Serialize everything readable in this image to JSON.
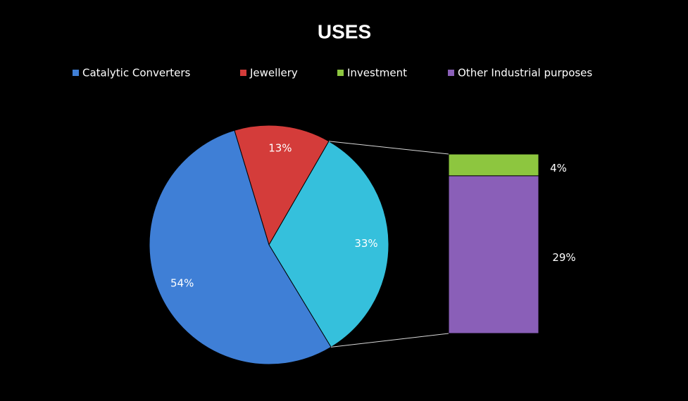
{
  "chart_data": {
    "type": "pie-of-bar",
    "title": "USES",
    "pie_slices": [
      {
        "name": "Catalytic Converters",
        "color": "#3f7fd6",
        "value": 54,
        "value_label": "54%"
      },
      {
        "name": "Jewellery",
        "color": "#d43c3a",
        "value": 13,
        "value_label": "13%"
      }
    ],
    "other_slice": {
      "color": "#35c0dc",
      "value": 33,
      "value_label": "33%"
    },
    "bar_segments": [
      {
        "name": "Investment",
        "color": "#8dc63f",
        "value": 4,
        "value_label": "4%"
      },
      {
        "name": "Other Industrial purposes",
        "color": "#8a5fb8",
        "value": 29,
        "value_label": "29%"
      }
    ]
  }
}
